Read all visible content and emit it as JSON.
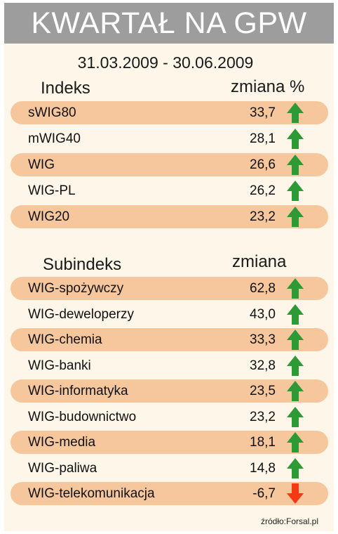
{
  "title": "KWARTAŁ NA GPW",
  "date_range": "31.03.2009 - 30.06.2009",
  "section1": {
    "col_name": "Indeks",
    "col_change": "zmiana %",
    "rows": [
      {
        "name": "sWIG80",
        "value": "33,7",
        "dir": "up"
      },
      {
        "name": "mWIG40",
        "value": "28,1",
        "dir": "up"
      },
      {
        "name": "WIG",
        "value": "26,6",
        "dir": "up"
      },
      {
        "name": "WIG-PL",
        "value": "26,2",
        "dir": "up"
      },
      {
        "name": "WIG20",
        "value": "23,2",
        "dir": "up"
      }
    ]
  },
  "section2": {
    "col_name": "Subindeks",
    "col_change": "zmiana",
    "rows": [
      {
        "name": "WIG-spożywczy",
        "value": "62,8",
        "dir": "up"
      },
      {
        "name": "WIG-deweloperzy",
        "value": "43,0",
        "dir": "up"
      },
      {
        "name": "WIG-chemia",
        "value": "33,3",
        "dir": "up"
      },
      {
        "name": "WIG-banki",
        "value": "32,8",
        "dir": "up"
      },
      {
        "name": "WIG-informatyka",
        "value": "23,5",
        "dir": "up"
      },
      {
        "name": "WIG-budownictwo",
        "value": "23,2",
        "dir": "up"
      },
      {
        "name": "WIG-media",
        "value": "18,1",
        "dir": "up"
      },
      {
        "name": "WIG-paliwa",
        "value": "14,8",
        "dir": "up"
      },
      {
        "name": "WIG-telekomunikacja",
        "value": "-6,7",
        "dir": "down"
      }
    ]
  },
  "source": "źródło:Forsal.pl",
  "colors": {
    "header_bg": "#9d9d9d",
    "row_shade": "#f6c79c",
    "background": "#fdf6e9",
    "arrow_up": "#2e9a35",
    "arrow_down": "#f23a14"
  }
}
